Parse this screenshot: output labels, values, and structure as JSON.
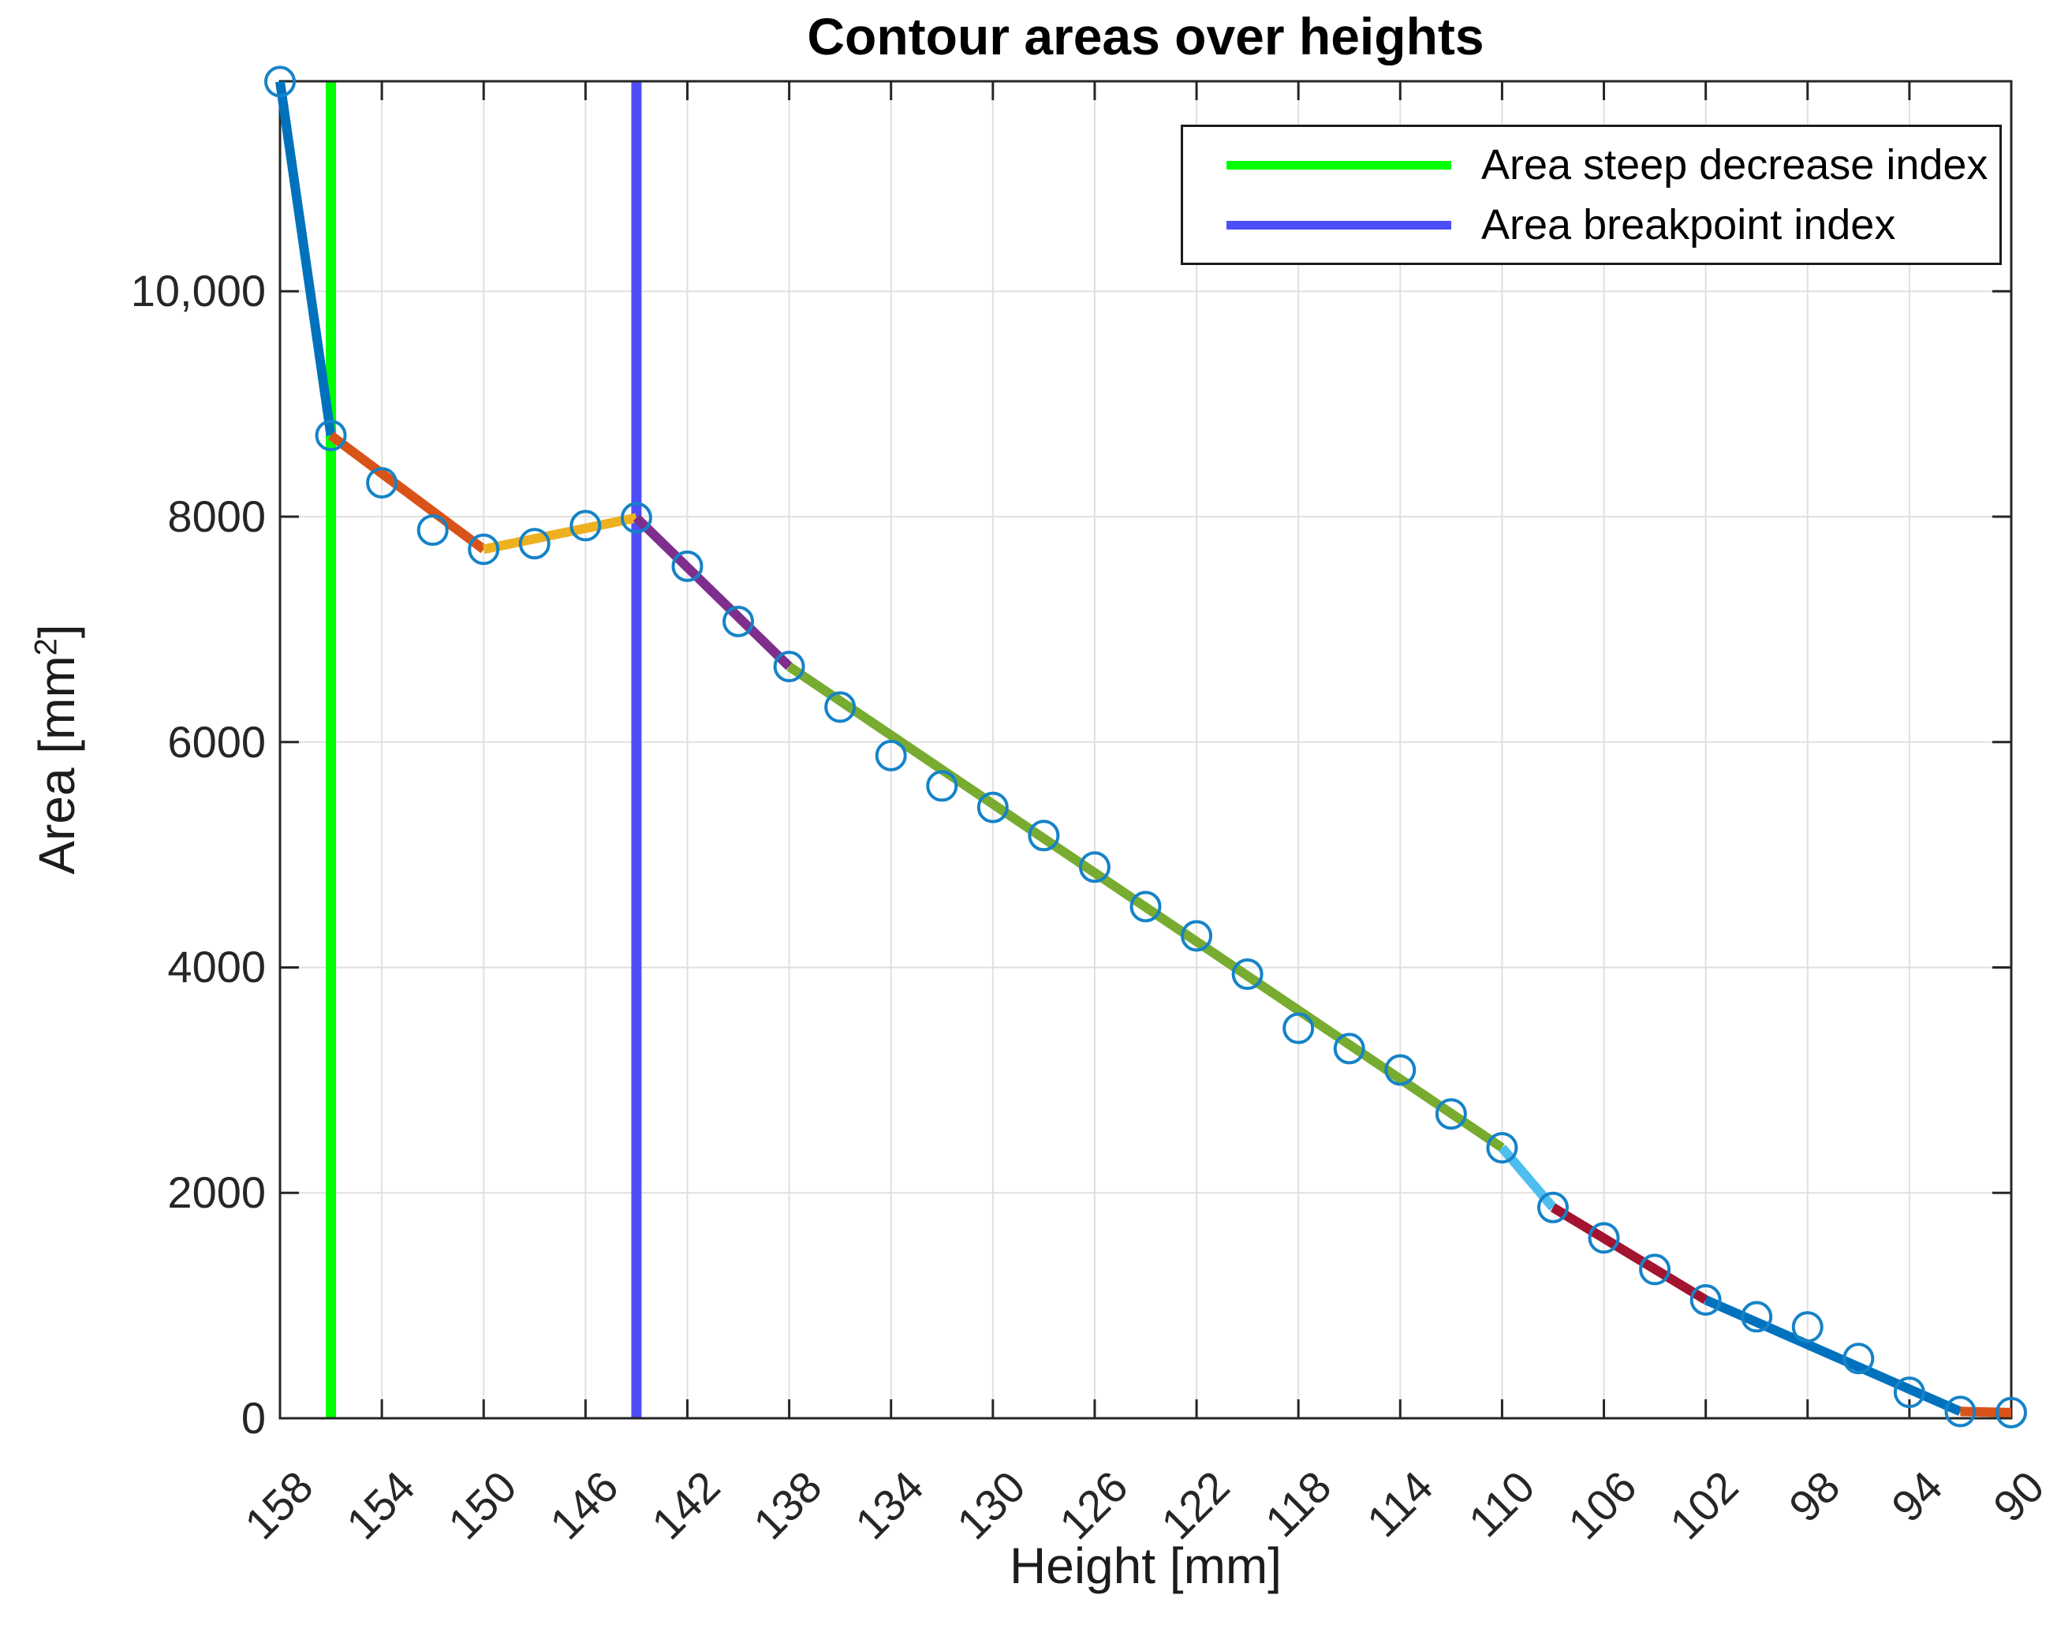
{
  "chart_data": {
    "type": "line",
    "title": "Contour areas over heights",
    "xlabel": "Height [mm]",
    "ylabel": "Area [mm²]",
    "ylabel_parts": {
      "prefix": "Area [mm",
      "sup": "2",
      "suffix": "]"
    },
    "x_axis_reversed": true,
    "xlim": [
      158,
      90
    ],
    "ylim": [
      0,
      11863
    ],
    "grid": true,
    "xticks": [
      158,
      154,
      150,
      146,
      142,
      138,
      134,
      130,
      126,
      122,
      118,
      114,
      110,
      106,
      102,
      98,
      94,
      90
    ],
    "yticks": [
      {
        "value": 0,
        "label": "0"
      },
      {
        "value": 2000,
        "label": "2000"
      },
      {
        "value": 4000,
        "label": "4000"
      },
      {
        "value": 6000,
        "label": "6000"
      },
      {
        "value": 8000,
        "label": "8000"
      },
      {
        "value": 10000,
        "label": "10,000"
      }
    ],
    "points": {
      "marker": "circle",
      "marker_color": "#1583C8",
      "x": [
        158,
        156,
        154,
        152,
        150,
        148,
        146,
        144,
        142,
        140,
        138,
        136,
        134,
        132,
        130,
        128,
        126,
        124,
        122,
        120,
        118,
        116,
        114,
        112,
        110,
        108,
        106,
        104,
        102,
        100,
        98,
        96,
        94,
        92,
        90
      ],
      "y": [
        11860,
        8720,
        8300,
        7880,
        7710,
        7760,
        7920,
        7990,
        7560,
        7070,
        6670,
        6310,
        5880,
        5610,
        5420,
        5170,
        4890,
        4540,
        4280,
        3940,
        3460,
        3280,
        3090,
        2700,
        2400,
        1870,
        1600,
        1320,
        1050,
        900,
        810,
        530,
        230,
        60,
        50
      ]
    },
    "segments": [
      {
        "from": 158,
        "to": 156,
        "color": "#0072BD"
      },
      {
        "from": 156,
        "to": 150,
        "color": "#D95319"
      },
      {
        "from": 150,
        "to": 144,
        "color": "#EDB120"
      },
      {
        "from": 144,
        "to": 138,
        "color": "#7E2F8E"
      },
      {
        "from": 138,
        "to": 110,
        "color": "#77AC30"
      },
      {
        "from": 110,
        "to": 108,
        "color": "#4DBEEE"
      },
      {
        "from": 108,
        "to": 102,
        "color": "#A2142F"
      },
      {
        "from": 102,
        "to": 92,
        "color": "#0072BD"
      },
      {
        "from": 92,
        "to": 90,
        "color": "#D95319"
      }
    ],
    "vlines": [
      {
        "x": 156,
        "color": "#00FF00",
        "label": "Area steep decrease index"
      },
      {
        "x": 144,
        "color": "#4D4DFA",
        "label": "Area breakpoint index"
      }
    ],
    "legend": {
      "position": "top-right",
      "entries": [
        {
          "label": "Area steep decrease index",
          "color": "#00FF00"
        },
        {
          "label": "Area breakpoint index",
          "color": "#4D4DFA"
        }
      ]
    },
    "axis_color": "#262626",
    "grid_color": "#E0E0E0"
  }
}
